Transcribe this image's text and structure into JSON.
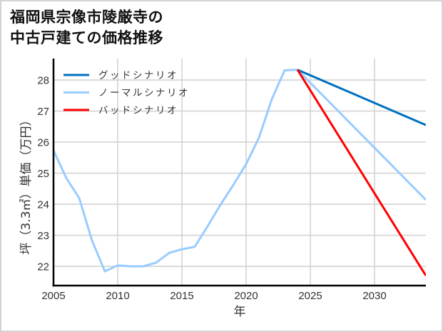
{
  "title": {
    "line1": "福岡県宗像市陵厳寺の",
    "line2": "中古戸建ての価格推移"
  },
  "chart_data": {
    "type": "line",
    "title": "福岡県宗像市陵厳寺の中古戸建ての価格推移",
    "xlabel": "年",
    "ylabel": "坪（3.3㎡）単価（万円）",
    "xlim": [
      2005,
      2034
    ],
    "ylim": [
      21.38,
      28.69
    ],
    "xticks": [
      2005,
      2010,
      2015,
      2020,
      2025,
      2030
    ],
    "yticks": [
      22,
      23,
      24,
      25,
      26,
      27,
      28
    ],
    "grid": true,
    "legend_position": "upper left",
    "series": [
      {
        "name": "ノーマルシナリオ",
        "color": "#99CCFF",
        "x": [
          2005,
          2006,
          2007,
          2008,
          2009,
          2010,
          2011,
          2012,
          2013,
          2014,
          2015,
          2016,
          2017,
          2018,
          2019,
          2020,
          2021,
          2022,
          2023,
          2024,
          2034
        ],
        "y": [
          25.73,
          24.84,
          24.2,
          22.83,
          21.84,
          22.03,
          22.0,
          22.0,
          22.12,
          22.43,
          22.55,
          22.63,
          23.29,
          23.98,
          24.62,
          25.29,
          26.14,
          27.38,
          28.31,
          28.33,
          24.14
        ]
      },
      {
        "name": "グッドシナリオ",
        "color": "#0070C0",
        "x": [
          2024,
          2034
        ],
        "y": [
          28.33,
          26.55
        ]
      },
      {
        "name": "バッドシナリオ",
        "color": "#FF0000",
        "x": [
          2024,
          2034
        ],
        "y": [
          28.33,
          21.7
        ]
      }
    ],
    "legend": [
      {
        "label": "グッドシナリオ",
        "color": "#0070C0"
      },
      {
        "label": "ノーマルシナリオ",
        "color": "#99CCFF"
      },
      {
        "label": "バッドシナリオ",
        "color": "#FF0000"
      }
    ]
  },
  "style": {
    "grid_color": "#d3d3d3",
    "axis_color": "#000000"
  }
}
